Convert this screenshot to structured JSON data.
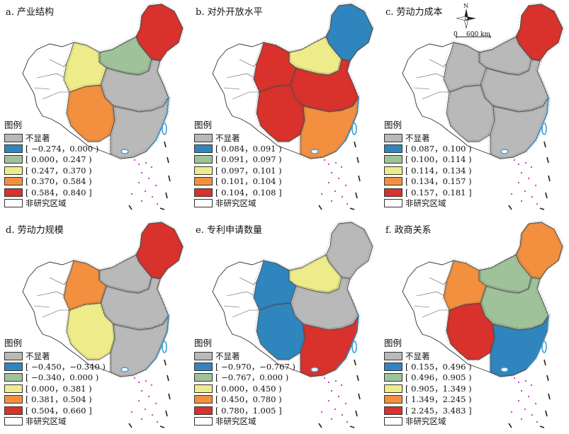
{
  "legend_title": "图例",
  "scale": {
    "north": "N",
    "zero": "0",
    "distance": "600 km"
  },
  "colors": {
    "not_significant": "#b9b9b9",
    "class1": "#2f86bf",
    "class2": "#9fc29a",
    "class3": "#eeec8a",
    "class4": "#f3903f",
    "class5": "#d9312b",
    "non_study": "#ffffff"
  },
  "panels": [
    {
      "title": "a. 产业结构",
      "legend": [
        "不显著",
        "[ −0.274，0.000 )",
        "[ 0.000，0.247 )",
        "[ 0.247，0.370 )",
        "[ 0.370，0.584 )",
        "[ 0.584，0.840 ]",
        "非研究区域"
      ]
    },
    {
      "title": "b. 对外开放水平",
      "legend": [
        "不显著",
        "[ 0.084，0.091 )",
        "[ 0.091，0.097 )",
        "[ 0.097，0.101 )",
        "[ 0.101，0.104 )",
        "[ 0.104，0.108 ]",
        "非研究区域"
      ]
    },
    {
      "title": "c. 劳动力成本",
      "legend": [
        "不显著",
        "[ 0.087，0.100 )",
        "[ 0.100，0.114 )",
        "[ 0.114，0.134 )",
        "[ 0.134，0.157 )",
        "[ 0.157，0.181 ]",
        "非研究区域"
      ]
    },
    {
      "title": "d. 劳动力规模",
      "legend": [
        "不显著",
        "[ −0.450，−0.340 )",
        "[ −0.340，0.000 )",
        "[ 0.000，0.381 )",
        "[ 0.381，0.504 )",
        "[ 0.504，0.660 ]",
        "非研究区域"
      ]
    },
    {
      "title": "e. 专利申请数量",
      "legend": [
        "不显著",
        "[ −0.970，−0.767 )",
        "[ −0.767，0.000 )",
        "[ 0.000，0.450 )",
        "[ 0.450，0.780 )",
        "[ 0.780，1.005 ]",
        "非研究区域"
      ]
    },
    {
      "title": "f. 政商关系",
      "legend": [
        "不显著",
        "[ 0.155，0.496 )",
        "[ 0.496，0.905 )",
        "[ 0.905，1.349 )",
        "[ 1.349，2.245 )",
        "[ 2.245，3.483 ]",
        "非研究区域"
      ]
    }
  ]
}
